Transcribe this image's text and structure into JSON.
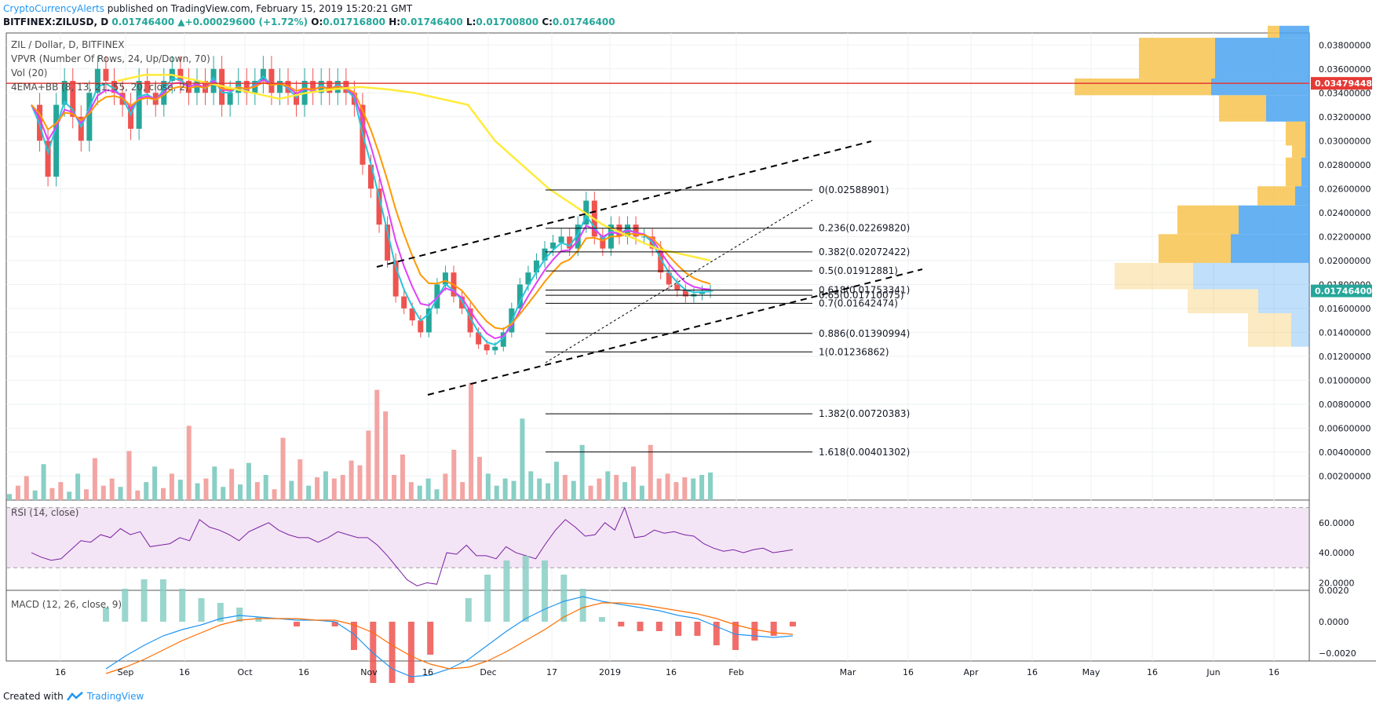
{
  "header": {
    "publisher": "CryptoCurrencyAlerts",
    "published_text": "published on TradingView.com, February 15, 2019 15:20:21 GMT",
    "symbol_line": "BITFINEX:ZILUSD, D",
    "last": "0.01746400",
    "change": "+0.00029600 (+1.72%)",
    "o_label": "O:",
    "o": "0.01716800",
    "h_label": "H:",
    "h": "0.01746400",
    "l_label": "L:",
    "l": "0.01700800",
    "c_label": "C:",
    "c": "0.01746400"
  },
  "legends": {
    "title": "ZIL / Dollar, D, BITFINEX",
    "vpvr": "VPVR (Number Of Rows, 24, Up/Down, 70)",
    "vol": "Vol (20)",
    "ema": "4EMA+BB (8, 13, 21, 55, 20, close, 2)",
    "rsi": "RSI (14, close)",
    "macd": "MACD (12, 26, close, 9)"
  },
  "footer": {
    "created_with": "Created with",
    "brand": "TradingView"
  },
  "colors": {
    "up": "#26a69a",
    "down": "#ef5350",
    "vol_up": "#88cfc5",
    "vol_down": "#f3a5a3",
    "ema8": "#26c6da",
    "ema13": "#e040fb",
    "ema21": "#ff9800",
    "ema55": "#ffeb3b",
    "rsi": "#7b1fa2",
    "rsi_band": "#f3e5f5",
    "resistance": "#e53935",
    "vpvr_up": "#4aa3f0",
    "vpvr_down": "#f7c34f",
    "axis_tag": "#26a69a"
  },
  "chart_data": [
    {
      "type": "candlestick",
      "title": "ZIL / Dollar, D, BITFINEX",
      "ylim": [
        0.0,
        0.039
      ],
      "y_ticks": [
        "0.03800000",
        "0.03600000",
        "0.03400000",
        "0.03200000",
        "0.03000000",
        "0.02800000",
        "0.02600000",
        "0.02400000",
        "0.02200000",
        "0.02000000",
        "0.01800000",
        "0.01600000",
        "0.01400000",
        "0.01200000",
        "0.01000000",
        "0.00800000",
        "0.00600000",
        "0.00400000",
        "0.00200000"
      ],
      "x_ticks": [
        "16",
        "Sep",
        "16",
        "Oct",
        "16",
        "Nov",
        "16",
        "Dec",
        "17",
        "2019",
        "16",
        "Feb",
        "Mar",
        "16",
        "Apr",
        "16",
        "May",
        "16",
        "Jun",
        "16"
      ],
      "price_tags": [
        {
          "label": "0.03479448",
          "value": 0.03479448,
          "color": "#e53935"
        },
        {
          "label": "0.01746400",
          "value": 0.017464,
          "color": "#26a69a"
        }
      ],
      "resistance_line": 0.03479448,
      "fibonacci": [
        {
          "label": "0(0.02588901)",
          "value": 0.02588901
        },
        {
          "label": "0.236(0.02269820)",
          "value": 0.0226982
        },
        {
          "label": "0.382(0.02072422)",
          "value": 0.02072422
        },
        {
          "label": "0.5(0.01912881)",
          "value": 0.01912881
        },
        {
          "label": "0.618(0.01753341)",
          "value": 0.01753341
        },
        {
          "label": "0.65(0.01710075)",
          "value": 0.01710075
        },
        {
          "label": "0.7(0.01642474)",
          "value": 0.01642474
        },
        {
          "label": "0.886(0.01390994)",
          "value": 0.01390994
        },
        {
          "label": "1(0.01236862)",
          "value": 0.01236862
        },
        {
          "label": "1.382(0.00720383)",
          "value": 0.00720383
        },
        {
          "label": "1.618(0.00401302)",
          "value": 0.00401302
        }
      ],
      "price_path": [
        0.033,
        0.03,
        0.027,
        0.033,
        0.035,
        0.032,
        0.03,
        0.034,
        0.036,
        0.035,
        0.034,
        0.033,
        0.031,
        0.035,
        0.034,
        0.033,
        0.035,
        0.036,
        0.035,
        0.034,
        0.035,
        0.034,
        0.036,
        0.033,
        0.034,
        0.035,
        0.034,
        0.035,
        0.036,
        0.034,
        0.035,
        0.034,
        0.033,
        0.035,
        0.034,
        0.035,
        0.034,
        0.035,
        0.034,
        0.033,
        0.028,
        0.026,
        0.023,
        0.02,
        0.017,
        0.016,
        0.015,
        0.014,
        0.016,
        0.018,
        0.019,
        0.017,
        0.016,
        0.014,
        0.013,
        0.0125,
        0.0128,
        0.014,
        0.016,
        0.018,
        0.019,
        0.02,
        0.021,
        0.0215,
        0.022,
        0.021,
        0.023,
        0.025,
        0.022,
        0.021,
        0.023,
        0.022,
        0.023,
        0.022,
        0.022,
        0.021,
        0.019,
        0.018,
        0.0175,
        0.017,
        0.0172,
        0.0174,
        0.01746
      ],
      "ema55_path": [
        0.035,
        0.0355,
        0.0355,
        0.035,
        0.0345,
        0.034,
        0.0335,
        0.034,
        0.0343,
        0.0345,
        0.0343,
        0.034,
        0.0335,
        0.033,
        0.03,
        0.028,
        0.026,
        0.0245,
        0.023,
        0.022,
        0.021,
        0.0205,
        0.02
      ],
      "volume_path": [
        0.0005,
        0.0012,
        0.002,
        0.0008,
        0.003,
        0.001,
        0.0015,
        0.0007,
        0.0022,
        0.0009,
        0.0035,
        0.0012,
        0.0018,
        0.0011,
        0.0041,
        0.0008,
        0.0015,
        0.0028,
        0.001,
        0.0022,
        0.0017,
        0.0062,
        0.0014,
        0.0018,
        0.0028,
        0.0011,
        0.0026,
        0.0013,
        0.0031,
        0.0015,
        0.0021,
        0.0009,
        0.0052,
        0.0016,
        0.0034,
        0.0012,
        0.0019,
        0.0024,
        0.0018,
        0.0021,
        0.0033,
        0.0029,
        0.0058,
        0.0092,
        0.0074,
        0.0021,
        0.0038,
        0.0015,
        0.0012,
        0.0018,
        0.0009,
        0.0022,
        0.0042,
        0.0015,
        0.0098,
        0.0036,
        0.0022,
        0.0012,
        0.0018,
        0.0016,
        0.0068,
        0.0024,
        0.0018,
        0.0014,
        0.0032,
        0.0021,
        0.0016,
        0.0046,
        0.0012,
        0.0018,
        0.0024,
        0.0021,
        0.0015,
        0.0028,
        0.0012,
        0.0046,
        0.0018,
        0.0022,
        0.0015,
        0.0019,
        0.0018,
        0.0021,
        0.0023
      ]
    },
    {
      "type": "line",
      "title": "RSI (14, close)",
      "ylim": [
        15,
        75
      ],
      "y_ticks": [
        "60.0000",
        "40.0000",
        "20.0000"
      ],
      "bands": [
        70,
        30
      ],
      "values": [
        40,
        37,
        35,
        36,
        42,
        48,
        47,
        52,
        50,
        56,
        52,
        54,
        44,
        45,
        46,
        50,
        48,
        62,
        57,
        55,
        52,
        48,
        54,
        57,
        60,
        55,
        52,
        50,
        50,
        47,
        50,
        54,
        52,
        50,
        50,
        45,
        38,
        30,
        22,
        18,
        20,
        19,
        40,
        39,
        45,
        38,
        38,
        36,
        44,
        40,
        38,
        36,
        46,
        55,
        62,
        57,
        51,
        52,
        60,
        55,
        70,
        50,
        51,
        55,
        53,
        54,
        52,
        51,
        46,
        43,
        41,
        42,
        40,
        42,
        43,
        40,
        41,
        42
      ]
    },
    {
      "type": "line",
      "title": "MACD (12, 26, close, 9)",
      "ylim": [
        -0.0025,
        0.002
      ],
      "y_ticks": [
        "0.0020",
        "0.0000",
        "−0.0020"
      ],
      "macd": [
        -0.003,
        -0.0022,
        -0.0015,
        -0.0009,
        -0.0005,
        -0.0002,
        0.0002,
        0.0004,
        0.0003,
        0.0002,
        0.0001,
        0.0001,
        0.0,
        -0.0008,
        -0.002,
        -0.003,
        -0.0035,
        -0.0034,
        -0.003,
        -0.0024,
        -0.0015,
        -0.0006,
        0.0002,
        0.0008,
        0.0013,
        0.0016,
        0.0013,
        0.0011,
        0.0009,
        0.0007,
        0.0004,
        0.0002,
        -0.0003,
        -0.0008,
        -0.0009,
        -0.001,
        -0.0009
      ],
      "signal": [
        -0.0033,
        -0.0029,
        -0.0024,
        -0.0018,
        -0.0012,
        -0.0007,
        -0.0002,
        0.0001,
        0.0002,
        0.0002,
        0.0002,
        0.0001,
        0.0001,
        -0.0002,
        -0.0007,
        -0.0015,
        -0.0022,
        -0.0027,
        -0.003,
        -0.0029,
        -0.0025,
        -0.0019,
        -0.0012,
        -0.0005,
        0.0003,
        0.0009,
        0.0012,
        0.0012,
        0.0011,
        0.0009,
        0.0007,
        0.0005,
        0.0002,
        -0.0002,
        -0.0005,
        -0.0007,
        -0.0008
      ]
    }
  ]
}
